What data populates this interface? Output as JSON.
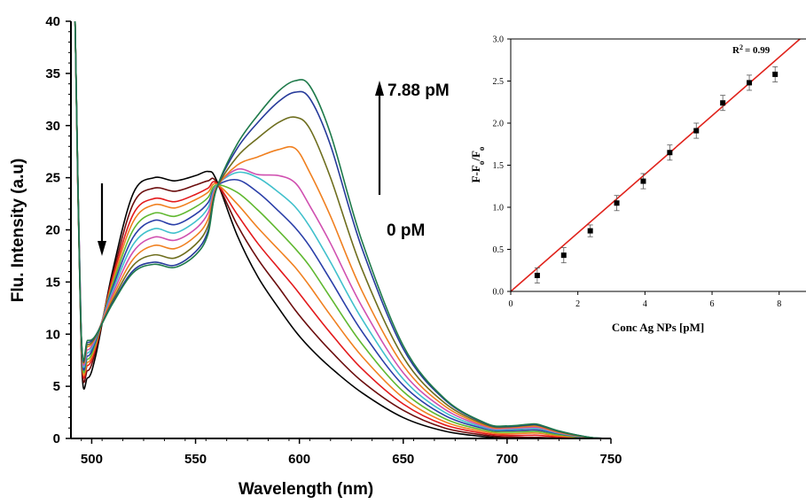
{
  "chart_data": [
    {
      "type": "line",
      "xlabel": "Wavelength (nm)",
      "ylabel": "Flu. Intensity (a.u)",
      "xlim": [
        490,
        750
      ],
      "ylim": [
        0,
        40
      ],
      "xticks": [
        500,
        550,
        600,
        650,
        700,
        750
      ],
      "yticks": [
        0,
        5,
        10,
        15,
        20,
        25,
        30,
        35,
        40
      ],
      "annotations": [
        {
          "text": "7.88 pM",
          "arrow": "up"
        },
        {
          "text": "0 pM"
        },
        {
          "text": "",
          "arrow": "down"
        }
      ],
      "x": [
        492,
        495,
        498,
        502,
        510,
        520,
        530,
        540,
        550,
        556,
        560,
        570,
        580,
        590,
        598,
        605,
        615,
        630,
        650,
        670,
        690,
        700,
        710,
        715,
        725,
        740,
        750
      ],
      "series": [
        {
          "color": "#000000",
          "values": [
            40,
            8.0,
            5.8,
            8.0,
            16.0,
            23.5,
            25.0,
            24.7,
            25.2,
            25.6,
            24.8,
            19.5,
            15.5,
            12.5,
            10.3,
            8.7,
            6.8,
            4.4,
            2.0,
            0.7,
            0.15,
            0.05,
            0.02,
            0.02,
            0.01,
            0.0,
            0.0
          ]
        },
        {
          "color": "#6b0d0d",
          "values": [
            40,
            8.5,
            6.5,
            8.5,
            15.6,
            22.5,
            24.0,
            23.7,
            24.3,
            24.7,
            24.6,
            20.5,
            17.2,
            14.5,
            12.3,
            10.6,
            8.4,
            5.5,
            2.7,
            1.0,
            0.3,
            0.15,
            0.1,
            0.1,
            0.05,
            0.0,
            0.0
          ]
        },
        {
          "color": "#e31a1c",
          "values": [
            40,
            8.8,
            7.0,
            8.8,
            15.3,
            21.5,
            23.0,
            22.7,
            23.4,
            24.0,
            24.5,
            21.5,
            18.7,
            16.3,
            14.4,
            12.6,
            10.1,
            6.7,
            3.3,
            1.3,
            0.45,
            0.3,
            0.3,
            0.3,
            0.15,
            0.02,
            0.0
          ]
        },
        {
          "color": "#f08020",
          "values": [
            40,
            9.0,
            7.3,
            9.0,
            15.0,
            20.8,
            22.4,
            22.1,
            22.9,
            23.6,
            24.4,
            22.5,
            20.2,
            18.1,
            16.4,
            14.6,
            11.8,
            7.9,
            3.9,
            1.6,
            0.6,
            0.45,
            0.5,
            0.5,
            0.25,
            0.03,
            0.0
          ]
        },
        {
          "color": "#60b830",
          "values": [
            40,
            9.2,
            7.6,
            9.2,
            14.7,
            20.0,
            21.6,
            21.3,
            22.2,
            23.1,
            24.3,
            23.6,
            21.9,
            19.9,
            18.2,
            16.5,
            13.5,
            9.1,
            4.5,
            1.9,
            0.75,
            0.6,
            0.65,
            0.65,
            0.35,
            0.04,
            0.0
          ]
        },
        {
          "color": "#2a3ea8",
          "values": [
            40,
            9.4,
            7.9,
            9.4,
            14.4,
            19.3,
            20.9,
            20.5,
            21.5,
            22.6,
            24.2,
            24.8,
            23.6,
            21.8,
            20.2,
            18.4,
            15.2,
            10.3,
            5.1,
            2.2,
            0.9,
            0.75,
            0.8,
            0.8,
            0.45,
            0.05,
            0.0
          ]
        },
        {
          "color": "#40c0cc",
          "values": [
            40,
            9.6,
            8.2,
            9.6,
            14.1,
            18.6,
            20.1,
            19.7,
            20.8,
            22.1,
            24.2,
            25.5,
            25.0,
            23.6,
            22.2,
            20.3,
            16.9,
            11.5,
            5.7,
            2.5,
            1.0,
            0.85,
            0.95,
            0.95,
            0.5,
            0.06,
            0.0
          ]
        },
        {
          "color": "#d050b0",
          "values": [
            40,
            9.7,
            8.5,
            9.7,
            13.8,
            17.9,
            19.3,
            19.0,
            20.1,
            21.6,
            24.1,
            25.8,
            25.3,
            25.2,
            24.5,
            22.3,
            18.7,
            12.7,
            6.3,
            2.8,
            1.1,
            0.95,
            1.05,
            1.05,
            0.55,
            0.07,
            0.0
          ]
        },
        {
          "color": "#f08020",
          "values": [
            40,
            9.8,
            8.8,
            9.8,
            13.5,
            17.2,
            18.5,
            18.2,
            19.4,
            21.0,
            24.0,
            26.2,
            27.0,
            27.7,
            27.8,
            25.5,
            21.3,
            14.2,
            7.0,
            3.1,
            1.2,
            1.05,
            1.15,
            1.15,
            0.6,
            0.08,
            0.0
          ]
        },
        {
          "color": "#6e6e1e",
          "values": [
            40,
            9.8,
            9.0,
            9.8,
            13.2,
            16.6,
            17.6,
            17.3,
            18.6,
            20.4,
            23.9,
            27.0,
            28.8,
            30.3,
            30.8,
            29.7,
            25.0,
            16.3,
            7.8,
            3.4,
            1.3,
            1.1,
            1.25,
            1.25,
            0.65,
            0.09,
            0.0
          ]
        },
        {
          "color": "#263a9a",
          "values": [
            40,
            9.9,
            9.2,
            9.9,
            13.0,
            16.1,
            16.9,
            16.6,
            17.9,
            19.9,
            23.9,
            27.8,
            30.3,
            32.3,
            33.2,
            32.6,
            28.1,
            18.3,
            8.6,
            3.7,
            1.4,
            1.15,
            1.3,
            1.3,
            0.7,
            0.1,
            0.0
          ]
        },
        {
          "color": "#1e7a4a",
          "values": [
            40,
            9.9,
            9.4,
            9.9,
            12.9,
            15.9,
            16.7,
            16.4,
            17.6,
            19.6,
            23.9,
            28.2,
            31.0,
            33.3,
            34.3,
            33.8,
            29.2,
            19.0,
            8.9,
            3.8,
            1.45,
            1.2,
            1.35,
            1.35,
            0.72,
            0.1,
            0.0
          ]
        }
      ]
    },
    {
      "type": "scatter",
      "xlabel": "Conc Ag NPs [pM]",
      "ylabel": "F-Fo/Fo",
      "ylabel_parts": {
        "a": "F-F",
        "b": "o",
        "c": "/F",
        "d": "o"
      },
      "xlim": [
        0,
        8.8
      ],
      "ylim": [
        0,
        3.0
      ],
      "xticks": [
        0,
        2,
        4,
        6,
        8
      ],
      "yticks": [
        "0.0",
        "0.5",
        "1.0",
        "1.5",
        "2.0",
        "2.5",
        "3.0"
      ],
      "r2_label": {
        "base": "R",
        "sup": "2",
        "value": "= 0.99"
      },
      "points": [
        {
          "x": 0.79,
          "y": 0.19,
          "err": 0.09
        },
        {
          "x": 1.58,
          "y": 0.43,
          "err": 0.09
        },
        {
          "x": 2.37,
          "y": 0.72,
          "err": 0.07
        },
        {
          "x": 3.16,
          "y": 1.05,
          "err": 0.09
        },
        {
          "x": 3.95,
          "y": 1.31,
          "err": 0.09
        },
        {
          "x": 4.74,
          "y": 1.65,
          "err": 0.09
        },
        {
          "x": 5.53,
          "y": 1.91,
          "err": 0.09
        },
        {
          "x": 6.32,
          "y": 2.24,
          "err": 0.09
        },
        {
          "x": 7.11,
          "y": 2.48,
          "err": 0.09
        },
        {
          "x": 7.88,
          "y": 2.58,
          "err": 0.09
        }
      ],
      "fit": {
        "slope": 0.348,
        "intercept": 0.0,
        "color": "#e0231c"
      }
    }
  ]
}
